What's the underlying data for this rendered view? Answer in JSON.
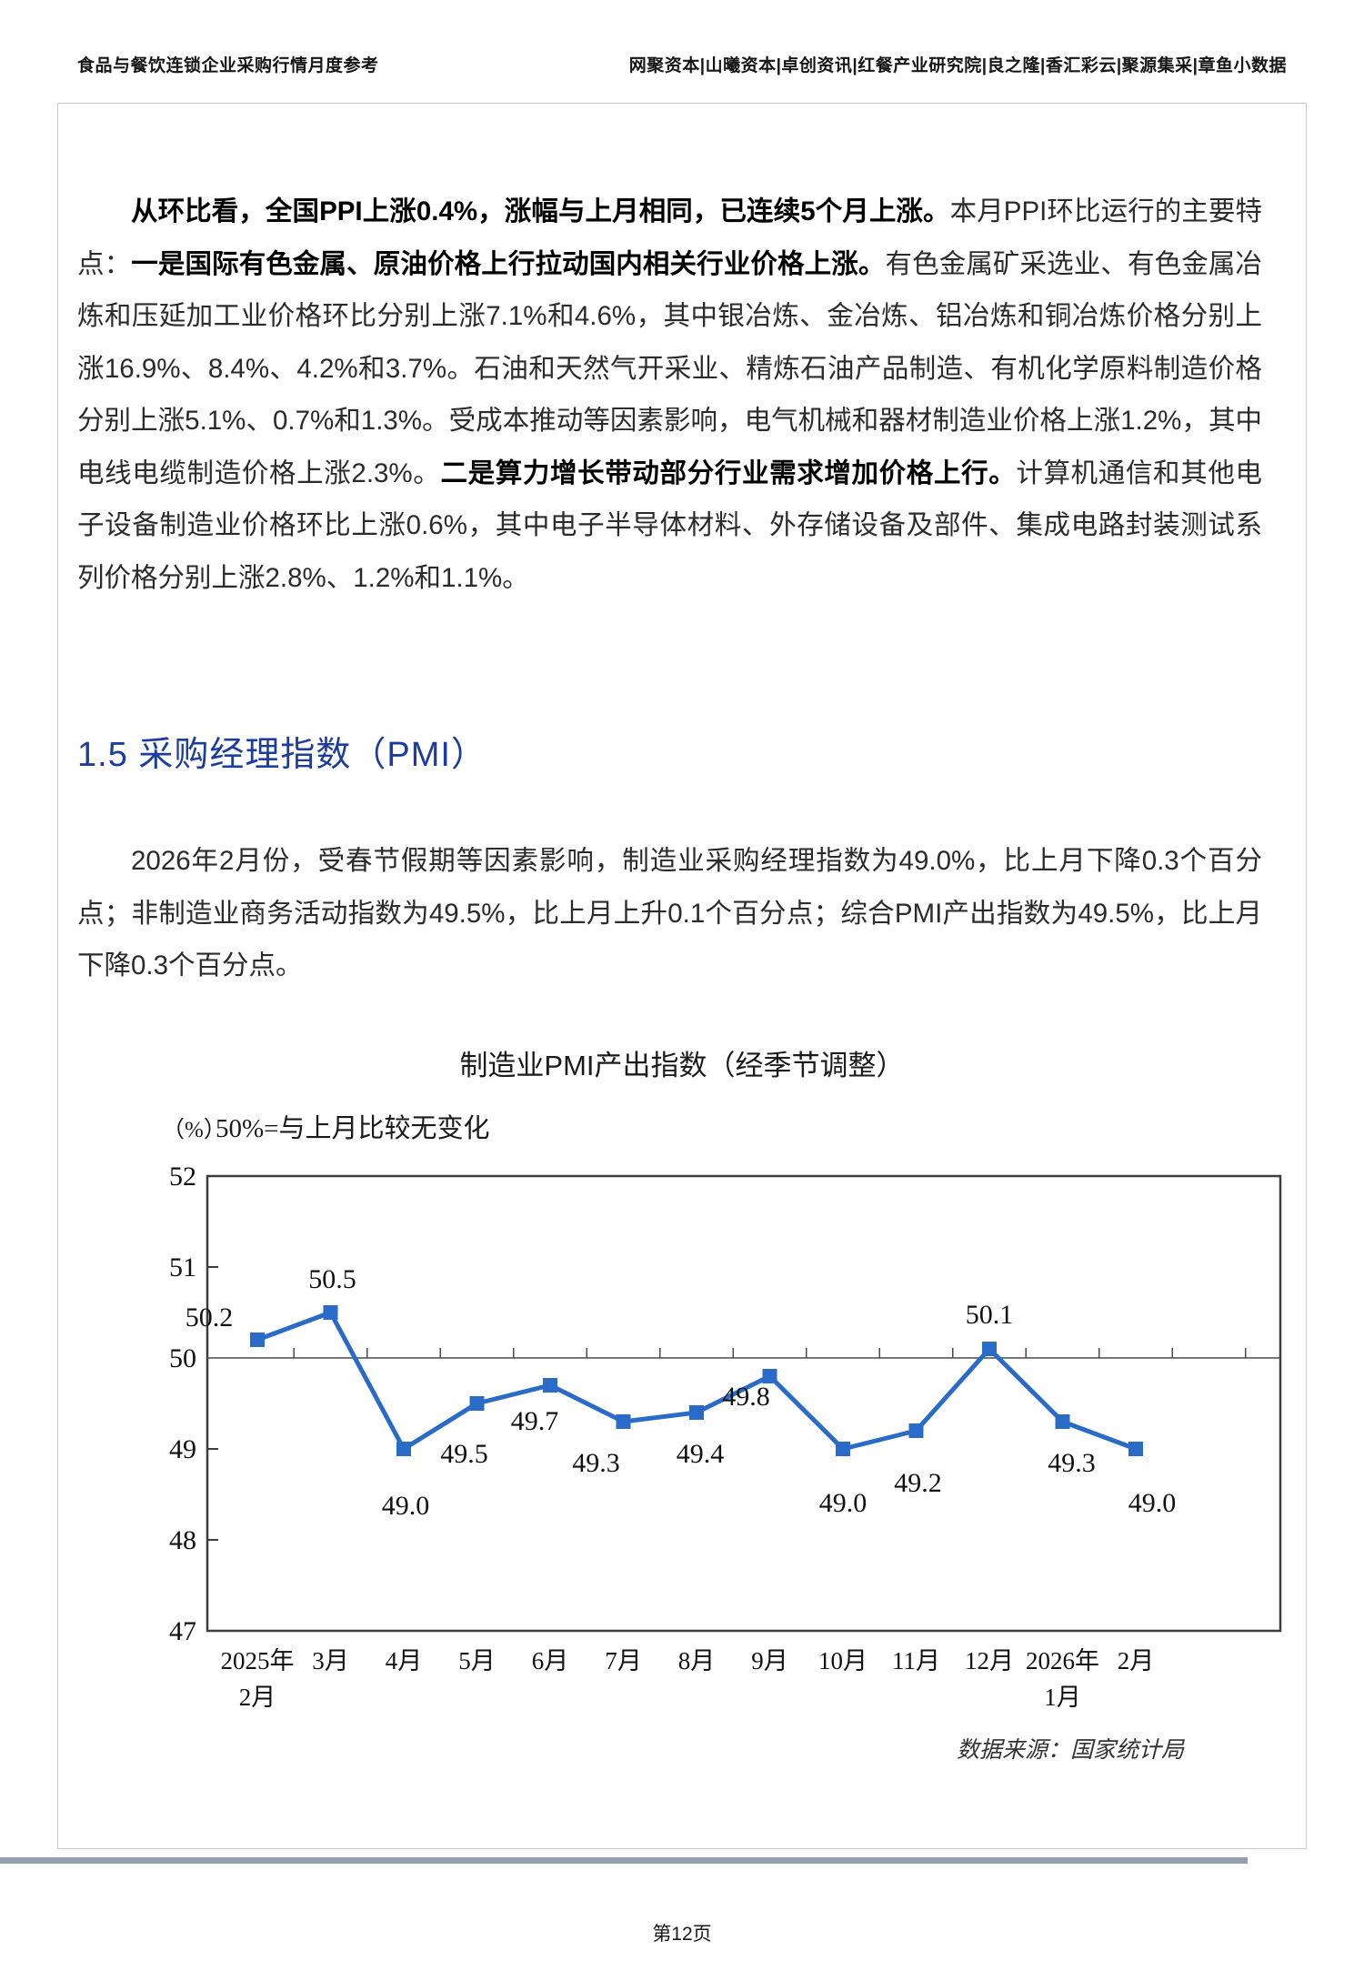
{
  "header": {
    "left": "食品与餐饮连锁企业采购行情月度参考",
    "right": "网聚资本|山曦资本|卓创资讯|红餐产业研究院|良之隆|香汇彩云|聚源集采|章鱼小数据"
  },
  "ppi_paragraph": {
    "segments": [
      {
        "bold": true,
        "text": "从环比看，全国PPI上涨0.4%，涨幅与上月相同，已连续5个月上涨。"
      },
      {
        "bold": false,
        "text": "本月PPI环比运行的主要特点："
      },
      {
        "bold": true,
        "text": "一是国际有色金属、原油价格上行拉动国内相关行业价格上涨。"
      },
      {
        "bold": false,
        "text": "有色金属矿采选业、有色金属冶炼和压延加工业价格环比分别上涨7.1%和4.6%，其中银冶炼、金冶炼、铝冶炼和铜冶炼价格分别上涨16.9%、8.4%、4.2%和3.7%。石油和天然气开采业、精炼石油产品制造、有机化学原料制造价格分别上涨5.1%、0.7%和1.3%。受成本推动等因素影响，电气机械和器材制造业价格上涨1.2%，其中电线电缆制造价格上涨"
      },
      {
        "bold": false,
        "text": "2.3%。"
      },
      {
        "bold": true,
        "text": "二是算力增长带动部分行业需求增加价格上行。"
      },
      {
        "bold": false,
        "text": "计算机通信和其他电子设备制造业价格环比上涨0.6%，其中电子半导体材料、外存储设备及部件、集成电路封装测试系列价格分别上涨2.8%、1.2%和1.1%。"
      }
    ]
  },
  "section_heading": "1.5  采购经理指数（PMI）",
  "pmi_paragraph": "2026年2月份，受春节假期等因素影响，制造业采购经理指数为49.0%，比上月下降0.3个百分点；非制造业商务活动指数为49.5%，比上月上升0.1个百分点；综合PMI产出指数为49.5%，比上月下降0.3个百分点。",
  "chart_data": {
    "type": "line",
    "title": "制造业PMI产出指数（经季节调整）",
    "ylabel": "（%）",
    "note": "50%=与上月比较无变化",
    "x": [
      "2025年\n2月",
      "3月",
      "4月",
      "5月",
      "6月",
      "7月",
      "8月",
      "9月",
      "10月",
      "11月",
      "12月",
      "2026年\n1月",
      "2月"
    ],
    "values": [
      50.2,
      50.5,
      49.0,
      49.5,
      49.7,
      49.3,
      49.4,
      49.8,
      49.0,
      49.2,
      50.1,
      49.3,
      49.0
    ],
    "ylim": [
      47,
      52
    ],
    "yticks": [
      47,
      48,
      49,
      50,
      51,
      52
    ],
    "reference_line": 50,
    "legend_position": "none",
    "grid": false,
    "line_color": "#2a6bc7",
    "source": "数据来源：国家统计局"
  },
  "footer": {
    "page_number": "第12页"
  }
}
